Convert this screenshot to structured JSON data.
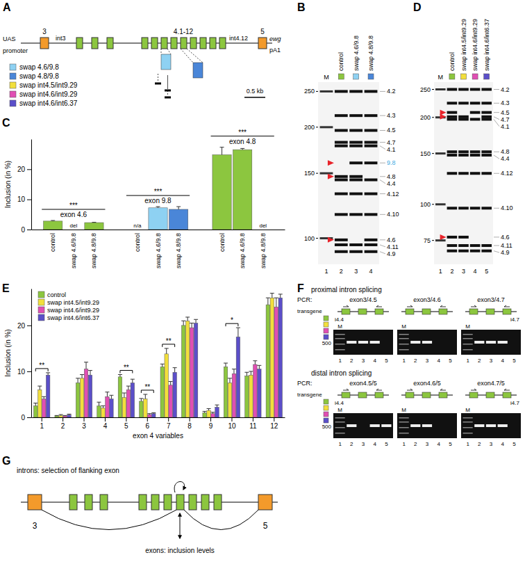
{
  "panels": {
    "A": {
      "letter": "A",
      "exon_labels": [
        "3",
        "4.1-12",
        "5"
      ],
      "promoter": [
        "UAS",
        "promoter"
      ],
      "intron_labels": [
        "int3",
        "int4.12"
      ],
      "terminator": [
        "ewg",
        "pA1"
      ],
      "scale_bar": "0.5 kb",
      "swaps": [
        {
          "name": "swap 4.6/9.8",
          "color": "#8ed1f2"
        },
        {
          "name": "swap 4.8/9.8",
          "color": "#4a86d8"
        },
        {
          "name": "swap int4.5/int9.29",
          "color": "#f2df3c"
        },
        {
          "name": "swap int4.6/int9.29",
          "color": "#e04fb3"
        },
        {
          "name": "swap int4.6/int6.37",
          "color": "#5b4fc9"
        }
      ]
    },
    "B": {
      "letter": "B",
      "lanes": [
        {
          "label": "M"
        },
        {
          "label": "control",
          "color": "#8cc63f"
        },
        {
          "label": "swap 4.6/9.8",
          "color": "#8ed1f2"
        },
        {
          "label": "swap 4.8/9.8",
          "color": "#4a86d8"
        }
      ],
      "lane_numbers": [
        1,
        2,
        3,
        4
      ],
      "log": true,
      "ylim": [
        265,
        85
      ],
      "ladder": [
        250,
        200,
        150,
        100
      ],
      "bands": [
        {
          "label": "4.2",
          "size": 250,
          "present": [
            true,
            true,
            true
          ]
        },
        {
          "label": "4.3",
          "size": 215,
          "present": [
            true,
            true,
            true
          ]
        },
        {
          "label": "4.5",
          "size": 196,
          "present": [
            true,
            true,
            true
          ]
        },
        {
          "label": "4.7",
          "size": 182,
          "present": [
            true,
            true,
            true
          ]
        },
        {
          "label": "4.1",
          "size": 178,
          "present": [
            true,
            true,
            true
          ]
        },
        {
          "label": "9.8",
          "size": 160,
          "present": [
            false,
            true,
            true
          ],
          "color": "#3fa9e0",
          "arrow": true
        },
        {
          "label": "4.8",
          "size": 147,
          "present": [
            true,
            true,
            false
          ],
          "arrow": true
        },
        {
          "label": "4.4",
          "size": 144,
          "present": [
            true,
            true,
            true
          ]
        },
        {
          "label": "4.12",
          "size": 132,
          "present": [
            true,
            true,
            true
          ]
        },
        {
          "label": "4.10",
          "size": 116,
          "present": [
            true,
            true,
            true
          ]
        },
        {
          "label": "4.6",
          "size": 99,
          "present": [
            true,
            false,
            true
          ],
          "arrow": true
        },
        {
          "label": "4.11",
          "size": 96,
          "present": [
            true,
            true,
            true
          ]
        },
        {
          "label": "4.9",
          "size": 92,
          "present": [
            true,
            true,
            true
          ]
        }
      ]
    },
    "D": {
      "letter": "D",
      "lanes": [
        {
          "label": "M"
        },
        {
          "label": "control",
          "color": "#8cc63f"
        },
        {
          "label": "swap int4.5/int9.29",
          "color": "#f2df3c"
        },
        {
          "label": "swap int4.6/int9.29",
          "color": "#e04fb3"
        },
        {
          "label": "swap int4.6/int6.37",
          "color": "#5b4fc9"
        }
      ],
      "lane_numbers": [
        1,
        2,
        3,
        4,
        5
      ],
      "log": true,
      "ylim": [
        265,
        62
      ],
      "ladder": [
        250,
        200,
        150,
        100,
        75
      ],
      "bands": [
        {
          "label": "4.2",
          "size": 250,
          "present": [
            true,
            true,
            true,
            true
          ]
        },
        {
          "label": "4.3",
          "size": 224,
          "present": [
            true,
            true,
            true,
            true
          ]
        },
        {
          "label": "4.5",
          "size": 208,
          "present": [
            true,
            false,
            true,
            true
          ],
          "arrow": true
        },
        {
          "label": "4.7",
          "size": 201,
          "present": [
            true,
            true,
            false,
            true
          ],
          "arrow": true
        },
        {
          "label": "4.1",
          "size": 197,
          "present": [
            true,
            true,
            true,
            true
          ]
        },
        {
          "label": "4.8",
          "size": 152,
          "present": [
            true,
            true,
            true,
            true
          ]
        },
        {
          "label": "4.4",
          "size": 148,
          "present": [
            true,
            true,
            true,
            true
          ]
        },
        {
          "label": "4.12",
          "size": 128,
          "present": [
            true,
            true,
            true,
            true
          ]
        },
        {
          "label": "4.10",
          "size": 97,
          "present": [
            true,
            true,
            true,
            true
          ]
        },
        {
          "label": "4.6",
          "size": 77,
          "present": [
            true,
            true,
            false,
            false
          ],
          "arrow": true
        },
        {
          "label": "4.11",
          "size": 72,
          "present": [
            true,
            true,
            true,
            true
          ]
        },
        {
          "label": "4.9",
          "size": 69,
          "present": [
            true,
            true,
            true,
            true
          ]
        }
      ]
    },
    "F": {
      "letter": "F",
      "marker_label": "M",
      "lane_label": "transgene",
      "size_marker": 500,
      "pcr_prefix": "PCR:",
      "lane_colors": [
        "#8cc63f",
        "#f2df3c",
        "#e04fb3",
        "#5b4fc9"
      ],
      "lane_numbers": [
        1,
        2,
        3,
        4,
        5
      ],
      "rows": [
        {
          "title": "proximal intron splicing",
          "gels": [
            {
              "pcr": "exon3/4.5",
              "intron_label": "i4.4",
              "present": [
                true,
                true,
                true,
                false
              ]
            },
            {
              "pcr": "exon3/4.6",
              "present": [
                true,
                true,
                false,
                false
              ]
            },
            {
              "pcr": "exon3/4.7",
              "intron_label": "i4.7",
              "present": [
                true,
                true,
                true,
                false
              ]
            }
          ]
        },
        {
          "title": "distal intron splicing",
          "gels": [
            {
              "pcr": "exon4.5/5",
              "intron_label": "i4.4",
              "present": [
                true,
                false,
                true,
                true
              ]
            },
            {
              "pcr": "exon4.6/5",
              "present": [
                true,
                true,
                false,
                false
              ]
            },
            {
              "pcr": "exon4.7/5",
              "intron_label": "i4.7",
              "present": [
                true,
                true,
                true,
                false
              ]
            }
          ]
        }
      ]
    },
    "G": {
      "letter": "G",
      "exon_labels": [
        "3",
        "5"
      ],
      "introns_text": "introns: selection of flanking exon",
      "exons_text": "exons: inclusion levels"
    }
  },
  "chart_data": [
    {
      "type": "bar",
      "panel": "C",
      "y_label": "Inclusion (in %)",
      "categories": [
        "exon 4.6",
        "exon 9.8",
        "exon 4.8"
      ],
      "ylim": [
        0,
        30
      ],
      "yticks": [
        0,
        10,
        20
      ],
      "significance": [
        "***",
        "***",
        "***"
      ],
      "series": [
        {
          "name": "control",
          "values": [
            2.8,
            null,
            24.8
          ],
          "errors": [
            0.2,
            null,
            2.5
          ],
          "colors": [
            "#8cc63f",
            "#8cc63f",
            "#8cc63f"
          ],
          "value_labels": [
            null,
            "n/a",
            null
          ]
        },
        {
          "name": "swap 4.6/9.8",
          "values": [
            null,
            7.2,
            26.5
          ],
          "errors": [
            null,
            0.4,
            0.4
          ],
          "colors": [
            "#8cc63f",
            "#8ed1f2",
            "#8cc63f"
          ],
          "value_labels": [
            "del",
            null,
            null
          ]
        },
        {
          "name": "swap 4.8/9.8",
          "values": [
            2.3,
            6.7,
            null
          ],
          "errors": [
            0.1,
            0.9,
            null
          ],
          "colors": [
            "#8cc63f",
            "#4a86d8",
            "#8cc63f"
          ],
          "value_labels": [
            null,
            null,
            "del"
          ]
        }
      ]
    },
    {
      "type": "bar",
      "panel": "E",
      "y_label": "Inclusion (in %)",
      "x_label": "exon 4 variables",
      "categories": [
        1,
        2,
        3,
        4,
        5,
        6,
        7,
        8,
        9,
        10,
        11,
        12
      ],
      "ylim": [
        0,
        28
      ],
      "yticks": [
        0,
        10,
        20
      ],
      "legend": "top-left",
      "significance": [
        "**",
        null,
        null,
        null,
        "**",
        "**",
        "**",
        null,
        null,
        "*",
        null,
        null
      ],
      "series": [
        {
          "name": "control",
          "color": "#8cc63f",
          "values": [
            2.5,
            0.3,
            7.5,
            2.5,
            8.8,
            3.5,
            11.0,
            20.0,
            1.0,
            11.0,
            9.0,
            24.5
          ],
          "errors": [
            0.6,
            0.1,
            1.0,
            0.8,
            0.5,
            0.6,
            0.6,
            1.0,
            0.3,
            0.8,
            0.8,
            1.5
          ]
        },
        {
          "name": "swap int4.5/int9.29",
          "color": "#f2df3c",
          "values": [
            6.0,
            0.4,
            8.5,
            2.0,
            4.3,
            4.0,
            13.8,
            21.0,
            1.5,
            7.5,
            9.2,
            26.0
          ],
          "errors": [
            0.8,
            0.2,
            0.8,
            0.5,
            1.0,
            1.0,
            1.2,
            0.8,
            0.4,
            1.0,
            0.8,
            1.0
          ]
        },
        {
          "name": "swap int4.6/int9.29",
          "color": "#e04fb3",
          "values": [
            4.0,
            0.3,
            10.5,
            4.5,
            6.0,
            0.6,
            7.0,
            19.5,
            0.8,
            9.5,
            11.5,
            24.0
          ],
          "errors": [
            0.5,
            0.1,
            1.5,
            1.0,
            0.8,
            0.2,
            0.8,
            1.0,
            0.3,
            1.0,
            0.8,
            2.0
          ]
        },
        {
          "name": "swap int4.6/int6.37",
          "color": "#5b4fc9",
          "values": [
            9.2,
            0.5,
            9.2,
            4.0,
            7.5,
            0.8,
            9.8,
            20.5,
            2.2,
            17.5,
            10.5,
            26.0
          ],
          "errors": [
            0.5,
            0.2,
            1.0,
            0.8,
            0.8,
            0.2,
            1.0,
            0.8,
            0.5,
            2.0,
            0.8,
            0.8
          ]
        }
      ]
    }
  ]
}
